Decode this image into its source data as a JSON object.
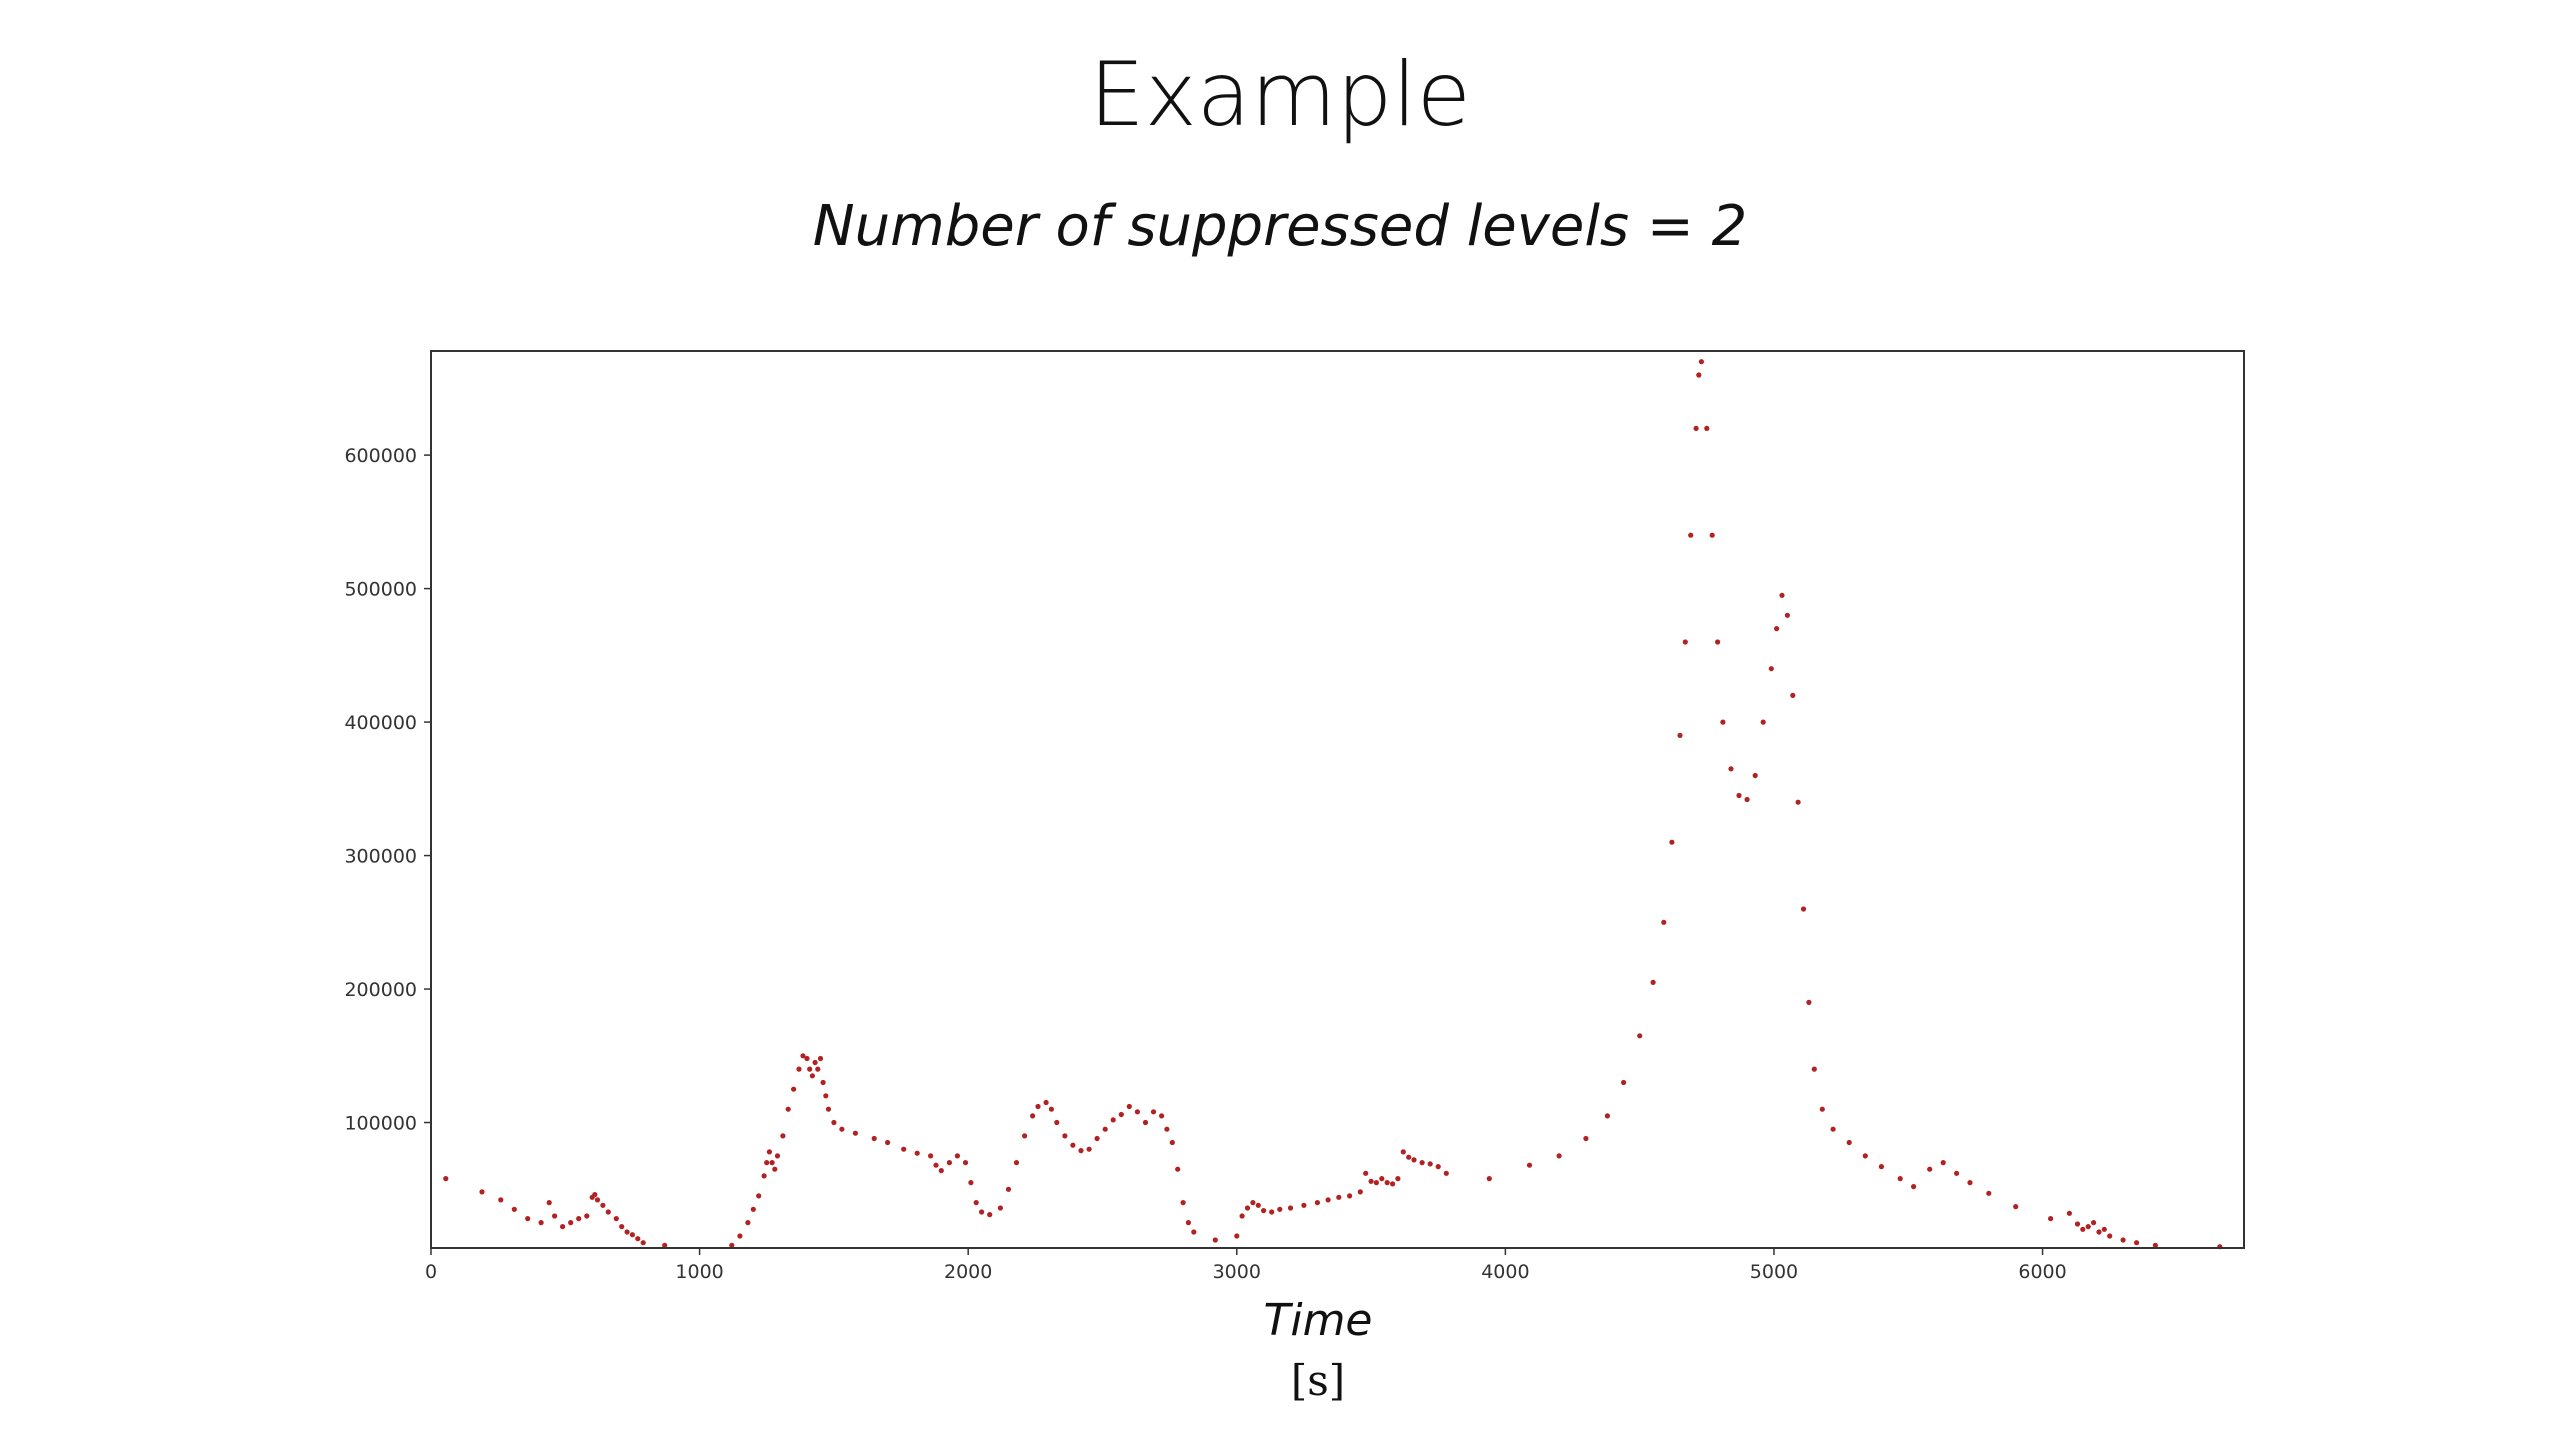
{
  "slide": {
    "title": "Example",
    "subtitle": "Number of suppressed levels = 2"
  },
  "chart_data": {
    "type": "scatter",
    "xlabel": "Time",
    "xunit": "[s]",
    "ylabel": "",
    "xlim": [
      0,
      6750
    ],
    "ylim": [
      6000,
      678000
    ],
    "xticks": [
      0,
      1000,
      2000,
      3000,
      4000,
      5000,
      6000
    ],
    "yticks": [
      100000,
      200000,
      300000,
      400000,
      500000,
      600000
    ],
    "grid": false,
    "legend": "none",
    "marker_color": "#b22222",
    "series": [
      {
        "points": [
          [
            55,
            58000
          ],
          [
            190,
            48000
          ],
          [
            260,
            42000
          ],
          [
            310,
            35000
          ],
          [
            360,
            28000
          ],
          [
            410,
            25000
          ],
          [
            440,
            40000
          ],
          [
            460,
            30000
          ],
          [
            490,
            22000
          ],
          [
            520,
            25000
          ],
          [
            550,
            28000
          ],
          [
            580,
            30000
          ],
          [
            600,
            44000
          ],
          [
            610,
            46000
          ],
          [
            620,
            42000
          ],
          [
            640,
            38000
          ],
          [
            660,
            33000
          ],
          [
            690,
            28000
          ],
          [
            710,
            22000
          ],
          [
            730,
            18000
          ],
          [
            750,
            16000
          ],
          [
            770,
            13000
          ],
          [
            790,
            10000
          ],
          [
            870,
            8000
          ],
          [
            1120,
            8000
          ],
          [
            1150,
            15000
          ],
          [
            1180,
            25000
          ],
          [
            1200,
            35000
          ],
          [
            1220,
            45000
          ],
          [
            1240,
            60000
          ],
          [
            1250,
            70000
          ],
          [
            1260,
            78000
          ],
          [
            1270,
            70000
          ],
          [
            1280,
            65000
          ],
          [
            1290,
            75000
          ],
          [
            1310,
            90000
          ],
          [
            1330,
            110000
          ],
          [
            1350,
            125000
          ],
          [
            1370,
            140000
          ],
          [
            1385,
            150000
          ],
          [
            1400,
            148000
          ],
          [
            1410,
            140000
          ],
          [
            1420,
            135000
          ],
          [
            1430,
            145000
          ],
          [
            1440,
            140000
          ],
          [
            1450,
            148000
          ],
          [
            1460,
            130000
          ],
          [
            1470,
            120000
          ],
          [
            1480,
            110000
          ],
          [
            1500,
            100000
          ],
          [
            1530,
            95000
          ],
          [
            1580,
            92000
          ],
          [
            1650,
            88000
          ],
          [
            1700,
            85000
          ],
          [
            1760,
            80000
          ],
          [
            1810,
            77000
          ],
          [
            1860,
            75000
          ],
          [
            1880,
            68000
          ],
          [
            1900,
            64000
          ],
          [
            1930,
            70000
          ],
          [
            1960,
            75000
          ],
          [
            1990,
            70000
          ],
          [
            2010,
            55000
          ],
          [
            2030,
            40000
          ],
          [
            2050,
            33000
          ],
          [
            2080,
            31000
          ],
          [
            2120,
            36000
          ],
          [
            2150,
            50000
          ],
          [
            2180,
            70000
          ],
          [
            2210,
            90000
          ],
          [
            2240,
            105000
          ],
          [
            2260,
            112000
          ],
          [
            2290,
            115000
          ],
          [
            2310,
            110000
          ],
          [
            2330,
            100000
          ],
          [
            2360,
            90000
          ],
          [
            2390,
            83000
          ],
          [
            2420,
            79000
          ],
          [
            2450,
            80000
          ],
          [
            2480,
            88000
          ],
          [
            2510,
            95000
          ],
          [
            2540,
            102000
          ],
          [
            2570,
            106000
          ],
          [
            2600,
            112000
          ],
          [
            2630,
            108000
          ],
          [
            2660,
            100000
          ],
          [
            2690,
            108000
          ],
          [
            2720,
            105000
          ],
          [
            2740,
            95000
          ],
          [
            2760,
            85000
          ],
          [
            2780,
            65000
          ],
          [
            2800,
            40000
          ],
          [
            2820,
            25000
          ],
          [
            2840,
            18000
          ],
          [
            2920,
            12000
          ],
          [
            3000,
            15000
          ],
          [
            3020,
            30000
          ],
          [
            3040,
            36000
          ],
          [
            3060,
            40000
          ],
          [
            3080,
            38000
          ],
          [
            3100,
            34000
          ],
          [
            3130,
            33000
          ],
          [
            3160,
            35000
          ],
          [
            3200,
            36000
          ],
          [
            3250,
            38000
          ],
          [
            3300,
            40000
          ],
          [
            3340,
            42000
          ],
          [
            3380,
            44000
          ],
          [
            3420,
            45000
          ],
          [
            3460,
            48000
          ],
          [
            3480,
            62000
          ],
          [
            3500,
            56000
          ],
          [
            3520,
            55000
          ],
          [
            3540,
            58000
          ],
          [
            3560,
            55000
          ],
          [
            3580,
            54000
          ],
          [
            3600,
            58000
          ],
          [
            3620,
            78000
          ],
          [
            3640,
            74000
          ],
          [
            3660,
            72000
          ],
          [
            3690,
            70000
          ],
          [
            3720,
            69000
          ],
          [
            3750,
            67000
          ],
          [
            3780,
            62000
          ],
          [
            3940,
            58000
          ],
          [
            4090,
            68000
          ],
          [
            4200,
            75000
          ],
          [
            4300,
            88000
          ],
          [
            4380,
            105000
          ],
          [
            4440,
            130000
          ],
          [
            4500,
            165000
          ],
          [
            4550,
            205000
          ],
          [
            4590,
            250000
          ],
          [
            4620,
            310000
          ],
          [
            4650,
            390000
          ],
          [
            4670,
            460000
          ],
          [
            4690,
            540000
          ],
          [
            4710,
            620000
          ],
          [
            4720,
            660000
          ],
          [
            4730,
            670000
          ],
          [
            4750,
            620000
          ],
          [
            4770,
            540000
          ],
          [
            4790,
            460000
          ],
          [
            4810,
            400000
          ],
          [
            4840,
            365000
          ],
          [
            4870,
            345000
          ],
          [
            4900,
            342000
          ],
          [
            4930,
            360000
          ],
          [
            4960,
            400000
          ],
          [
            4990,
            440000
          ],
          [
            5010,
            470000
          ],
          [
            5030,
            495000
          ],
          [
            5050,
            480000
          ],
          [
            5070,
            420000
          ],
          [
            5090,
            340000
          ],
          [
            5110,
            260000
          ],
          [
            5130,
            190000
          ],
          [
            5150,
            140000
          ],
          [
            5180,
            110000
          ],
          [
            5220,
            95000
          ],
          [
            5280,
            85000
          ],
          [
            5340,
            75000
          ],
          [
            5400,
            67000
          ],
          [
            5470,
            58000
          ],
          [
            5520,
            52000
          ],
          [
            5580,
            65000
          ],
          [
            5630,
            70000
          ],
          [
            5680,
            62000
          ],
          [
            5730,
            55000
          ],
          [
            5800,
            47000
          ],
          [
            5900,
            37000
          ],
          [
            6030,
            28000
          ],
          [
            6100,
            32000
          ],
          [
            6130,
            24000
          ],
          [
            6150,
            20000
          ],
          [
            6170,
            22000
          ],
          [
            6190,
            25000
          ],
          [
            6210,
            18000
          ],
          [
            6230,
            20000
          ],
          [
            6250,
            15000
          ],
          [
            6300,
            12000
          ],
          [
            6350,
            10000
          ],
          [
            6420,
            8000
          ],
          [
            6660,
            7000
          ]
        ]
      }
    ]
  }
}
